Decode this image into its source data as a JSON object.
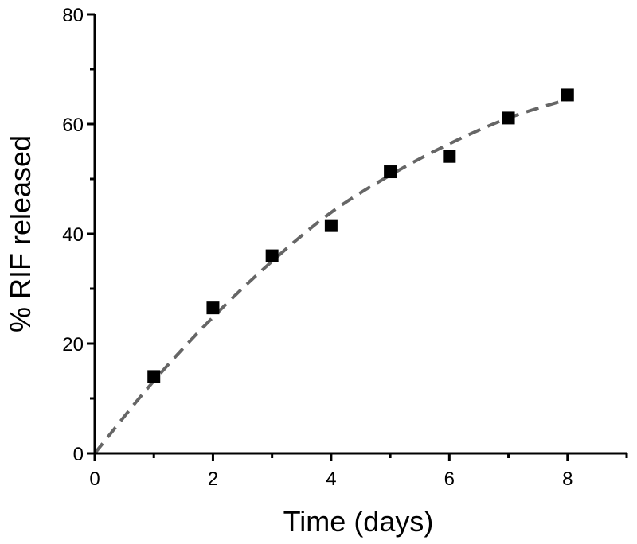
{
  "chart_data": {
    "type": "scatter",
    "title": "",
    "xlabel": "Time (days)",
    "ylabel": "% RIF released",
    "xlim": [
      0,
      9
    ],
    "ylim": [
      0,
      80
    ],
    "xticks": [
      0,
      2,
      4,
      6,
      8
    ],
    "yticks": [
      0,
      20,
      40,
      60,
      80
    ],
    "xtick_labels": [
      "0",
      "2",
      "4",
      "6",
      "8"
    ],
    "ytick_labels": [
      "0",
      "20",
      "40",
      "60",
      "80"
    ],
    "grid": false,
    "legend": "none",
    "series": [
      {
        "kind": "markers",
        "marker": "square",
        "color": "#000000",
        "x": [
          1,
          2,
          3,
          4,
          5,
          6,
          7,
          8
        ],
        "y": [
          14,
          26.5,
          36,
          41.5,
          51.3,
          54.1,
          61.1,
          65.3
        ]
      },
      {
        "kind": "fit-curve",
        "style": "dashed",
        "color": "#666666",
        "x": [
          0,
          1,
          2,
          3,
          4,
          5,
          6,
          7,
          8
        ],
        "y": [
          0,
          13.2,
          24.8,
          35.0,
          43.9,
          50.7,
          56.4,
          61.1,
          64.5
        ]
      }
    ]
  }
}
